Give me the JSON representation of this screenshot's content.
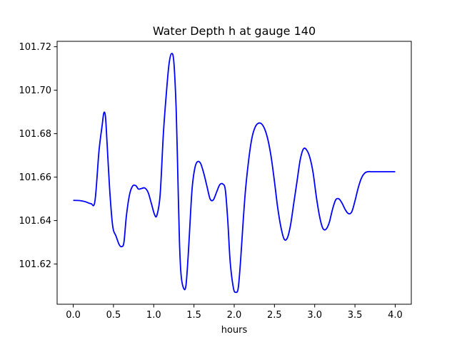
{
  "chart_data": {
    "type": "line",
    "title": "Water Depth h at gauge 140",
    "xlabel": "hours",
    "ylabel": "",
    "xlim": [
      -0.2,
      4.2
    ],
    "ylim": [
      101.6015,
      101.7225
    ],
    "xticks": [
      0.0,
      0.5,
      1.0,
      1.5,
      2.0,
      2.5,
      3.0,
      3.5,
      4.0
    ],
    "xtick_labels": [
      "0.0",
      "0.5",
      "1.0",
      "1.5",
      "2.0",
      "2.5",
      "3.0",
      "3.5",
      "4.0"
    ],
    "yticks": [
      101.62,
      101.64,
      101.66,
      101.68,
      101.7,
      101.72
    ],
    "ytick_labels": [
      "101.62",
      "101.64",
      "101.66",
      "101.68",
      "101.70",
      "101.72"
    ],
    "grid": false,
    "series": [
      {
        "color": "#0000ff",
        "x": [
          0.0,
          0.08,
          0.15,
          0.22,
          0.27,
          0.32,
          0.36,
          0.38,
          0.4,
          0.42,
          0.45,
          0.48,
          0.5,
          0.53,
          0.57,
          0.6,
          0.63,
          0.66,
          0.7,
          0.74,
          0.78,
          0.81,
          0.85,
          0.89,
          0.93,
          0.97,
          1.01,
          1.04,
          1.08,
          1.12,
          1.16,
          1.19,
          1.22,
          1.25,
          1.28,
          1.3,
          1.32,
          1.34,
          1.37,
          1.4,
          1.43,
          1.46,
          1.48,
          1.51,
          1.54,
          1.58,
          1.62,
          1.66,
          1.7,
          1.74,
          1.78,
          1.82,
          1.86,
          1.89,
          1.92,
          1.95,
          1.99,
          2.02,
          2.05,
          2.08,
          2.11,
          2.14,
          2.18,
          2.22,
          2.26,
          2.3,
          2.34,
          2.38,
          2.42,
          2.46,
          2.5,
          2.54,
          2.58,
          2.62,
          2.66,
          2.7,
          2.74,
          2.78,
          2.82,
          2.86,
          2.9,
          2.94,
          2.98,
          3.02,
          3.06,
          3.1,
          3.14,
          3.18,
          3.22,
          3.26,
          3.3,
          3.34,
          3.38,
          3.42,
          3.46,
          3.5,
          3.54,
          3.58,
          3.62,
          3.66,
          3.7,
          3.74,
          3.78,
          3.82,
          3.86,
          3.9,
          3.94,
          3.98,
          4.0
        ],
        "y": [
          101.6493,
          101.6492,
          101.6487,
          101.6478,
          101.649,
          101.672,
          101.684,
          101.6895,
          101.688,
          101.676,
          101.656,
          101.641,
          101.6355,
          101.633,
          101.629,
          101.628,
          101.63,
          101.642,
          101.652,
          101.656,
          101.656,
          101.6545,
          101.6548,
          101.655,
          101.653,
          101.648,
          101.6428,
          101.6425,
          101.652,
          101.68,
          101.7,
          101.712,
          101.7168,
          101.713,
          101.69,
          101.66,
          101.63,
          101.615,
          101.609,
          101.61,
          101.625,
          101.645,
          101.656,
          101.664,
          101.667,
          101.6665,
          101.662,
          101.656,
          101.65,
          101.6495,
          101.653,
          101.6565,
          101.6568,
          101.654,
          101.64,
          101.621,
          101.609,
          101.607,
          101.609,
          101.622,
          101.639,
          101.654,
          101.668,
          101.678,
          101.683,
          101.6848,
          101.6845,
          101.682,
          101.677,
          101.669,
          101.658,
          101.646,
          101.637,
          101.6315,
          101.632,
          101.638,
          101.648,
          101.658,
          101.668,
          101.673,
          101.6725,
          101.669,
          101.662,
          101.651,
          101.642,
          101.6365,
          101.636,
          101.639,
          101.645,
          101.6495,
          101.65,
          101.648,
          101.645,
          101.6432,
          101.644,
          101.649,
          101.655,
          101.6595,
          101.6618,
          101.6625,
          101.6625,
          101.6625,
          101.6625,
          101.6625,
          101.6625,
          101.6625,
          101.6625,
          101.6625,
          101.6625
        ]
      }
    ]
  }
}
